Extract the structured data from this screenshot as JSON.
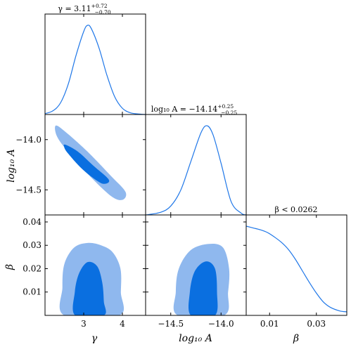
{
  "chart_data": {
    "type": "corner",
    "colors": {
      "line": "#1f77e8",
      "inner_fill": "#0a6fe0",
      "outer_fill": "#8fb8ee",
      "frame": "#000000"
    },
    "parameters": [
      {
        "key": "gamma",
        "label": "γ",
        "ticks": [
          "3",
          "4"
        ],
        "range": [
          2.0,
          4.6
        ]
      },
      {
        "key": "logA",
        "label": "log₁₀ A",
        "ticks": [
          "−14.5",
          "−14.0"
        ],
        "range": [
          -14.75,
          -13.75
        ]
      },
      {
        "key": "beta",
        "label": "β",
        "ticks": [
          "0.01",
          "0.03"
        ],
        "range": [
          0.0,
          0.043
        ]
      }
    ],
    "y_ticks": {
      "logA": [
        "−14.0",
        "−14.5"
      ],
      "beta": [
        "0.01",
        "0.02",
        "0.03",
        "0.04"
      ]
    },
    "titles": {
      "gamma": "γ = 3.11",
      "gamma_sup": "+0.72",
      "gamma_sub": "−0.70",
      "logA": "log₁₀ A = −14.14",
      "logA_sup": "+0.25",
      "logA_sub": "−0.25",
      "beta": "β < 0.0262"
    },
    "marginals": {
      "gamma": {
        "x": [
          2.0,
          2.2,
          2.4,
          2.6,
          2.8,
          3.0,
          3.1,
          3.2,
          3.4,
          3.6,
          3.8,
          4.0,
          4.2,
          4.4,
          4.6
        ],
        "y": [
          0.01,
          0.04,
          0.13,
          0.34,
          0.66,
          0.93,
          1.0,
          0.96,
          0.74,
          0.44,
          0.2,
          0.07,
          0.02,
          0.006,
          0.0
        ]
      },
      "logA": {
        "x": [
          -14.75,
          -14.6,
          -14.5,
          -14.4,
          -14.3,
          -14.2,
          -14.14,
          -14.08,
          -14.0,
          -13.9,
          -13.8,
          -13.75
        ],
        "y": [
          0.0,
          0.03,
          0.1,
          0.28,
          0.6,
          0.92,
          1.0,
          0.9,
          0.58,
          0.15,
          0.02,
          0.0
        ]
      },
      "beta": {
        "x": [
          0.0,
          0.003,
          0.006,
          0.009,
          0.012,
          0.015,
          0.018,
          0.021,
          0.024,
          0.027,
          0.03,
          0.033,
          0.036,
          0.04,
          0.043
        ],
        "y": [
          1.0,
          0.98,
          0.96,
          0.93,
          0.88,
          0.82,
          0.74,
          0.63,
          0.5,
          0.37,
          0.25,
          0.15,
          0.09,
          0.05,
          0.04
        ]
      }
    },
    "joint_contours": {
      "gamma_logA": {
        "outer_95": [
          [
            2.28,
            -13.86
          ],
          [
            2.55,
            -13.93
          ],
          [
            3.1,
            -14.12
          ],
          [
            3.7,
            -14.36
          ],
          [
            4.08,
            -14.52
          ],
          [
            4.0,
            -14.6
          ],
          [
            3.7,
            -14.56
          ],
          [
            3.1,
            -14.34
          ],
          [
            2.55,
            -14.1
          ],
          [
            2.3,
            -13.96
          ]
        ],
        "inner_68": [
          [
            2.52,
            -14.05
          ],
          [
            2.85,
            -14.12
          ],
          [
            3.25,
            -14.26
          ],
          [
            3.65,
            -14.4
          ],
          [
            3.5,
            -14.44
          ],
          [
            3.2,
            -14.37
          ],
          [
            2.9,
            -14.27
          ],
          [
            2.6,
            -14.14
          ],
          [
            2.5,
            -14.08
          ]
        ]
      },
      "gamma_beta": {
        "outer_95": [
          [
            2.5,
            0.0
          ],
          [
            2.45,
            0.012
          ],
          [
            2.5,
            0.022
          ],
          [
            2.75,
            0.029
          ],
          [
            3.1,
            0.031
          ],
          [
            3.45,
            0.03
          ],
          [
            3.75,
            0.027
          ],
          [
            3.95,
            0.02
          ],
          [
            3.96,
            0.01
          ],
          [
            3.92,
            0.0
          ]
        ],
        "inner_68": [
          [
            2.78,
            0.0
          ],
          [
            2.77,
            0.01
          ],
          [
            2.88,
            0.018
          ],
          [
            3.1,
            0.0228
          ],
          [
            3.35,
            0.021
          ],
          [
            3.48,
            0.014
          ],
          [
            3.52,
            0.006
          ],
          [
            3.52,
            0.0
          ]
        ]
      },
      "logA_beta": {
        "outer_95": [
          [
            -14.43,
            0.0
          ],
          [
            -14.45,
            0.01
          ],
          [
            -14.42,
            0.02
          ],
          [
            -14.3,
            0.028
          ],
          [
            -14.12,
            0.0306
          ],
          [
            -13.98,
            0.029
          ],
          [
            -13.92,
            0.02
          ],
          [
            -13.93,
            0.01
          ],
          [
            -13.97,
            0.0
          ]
        ],
        "inner_68": [
          [
            -14.3,
            0.0
          ],
          [
            -14.31,
            0.01
          ],
          [
            -14.26,
            0.019
          ],
          [
            -14.15,
            0.0231
          ],
          [
            -14.06,
            0.02
          ],
          [
            -14.04,
            0.01
          ],
          [
            -14.06,
            0.0
          ]
        ]
      }
    }
  }
}
